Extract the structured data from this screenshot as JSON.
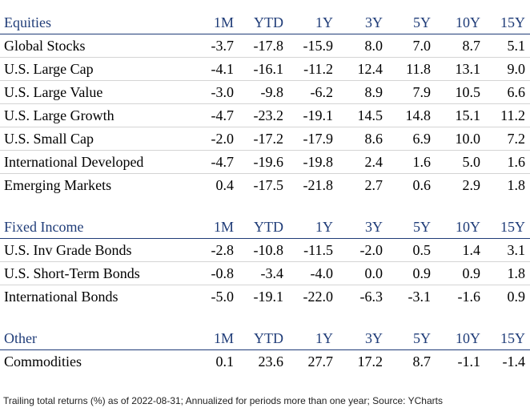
{
  "columns": [
    "1M",
    "YTD",
    "1Y",
    "3Y",
    "5Y",
    "10Y",
    "15Y"
  ],
  "sections": [
    {
      "title": "Equities",
      "rows": [
        {
          "name": "Global Stocks",
          "values": [
            "-3.7",
            "-17.8",
            "-15.9",
            "8.0",
            "7.0",
            "8.7",
            "5.1"
          ]
        },
        {
          "name": "U.S. Large Cap",
          "values": [
            "-4.1",
            "-16.1",
            "-11.2",
            "12.4",
            "11.8",
            "13.1",
            "9.0"
          ]
        },
        {
          "name": "U.S. Large Value",
          "values": [
            "-3.0",
            "-9.8",
            "-6.2",
            "8.9",
            "7.9",
            "10.5",
            "6.6"
          ]
        },
        {
          "name": "U.S. Large Growth",
          "values": [
            "-4.7",
            "-23.2",
            "-19.1",
            "14.5",
            "14.8",
            "15.1",
            "11.2"
          ]
        },
        {
          "name": "U.S. Small Cap",
          "values": [
            "-2.0",
            "-17.2",
            "-17.9",
            "8.6",
            "6.9",
            "10.0",
            "7.2"
          ]
        },
        {
          "name": "International Developed",
          "values": [
            "-4.7",
            "-19.6",
            "-19.8",
            "2.4",
            "1.6",
            "5.0",
            "1.6"
          ]
        },
        {
          "name": "Emerging Markets",
          "values": [
            "0.4",
            "-17.5",
            "-21.8",
            "2.7",
            "0.6",
            "2.9",
            "1.8"
          ]
        }
      ]
    },
    {
      "title": "Fixed Income",
      "rows": [
        {
          "name": "U.S. Inv Grade Bonds",
          "values": [
            "-2.8",
            "-10.8",
            "-11.5",
            "-2.0",
            "0.5",
            "1.4",
            "3.1"
          ]
        },
        {
          "name": "U.S. Short-Term Bonds",
          "values": [
            "-0.8",
            "-3.4",
            "-4.0",
            "0.0",
            "0.9",
            "0.9",
            "1.8"
          ]
        },
        {
          "name": "International Bonds",
          "values": [
            "-5.0",
            "-19.1",
            "-22.0",
            "-6.3",
            "-3.1",
            "-1.6",
            "0.9"
          ]
        }
      ]
    },
    {
      "title": "Other",
      "rows": [
        {
          "name": "Commodities",
          "values": [
            "0.1",
            "23.6",
            "27.7",
            "17.2",
            "8.7",
            "-1.1",
            "-1.4"
          ]
        }
      ]
    }
  ],
  "footnote": "Trailing total returns (%) as of 2022-08-31; Annualized for periods more than one year; Source: YCharts",
  "colors": {
    "header_text": "#1f3c78",
    "header_rule": "#1f3c78",
    "row_rule": "#d4d4d4"
  }
}
